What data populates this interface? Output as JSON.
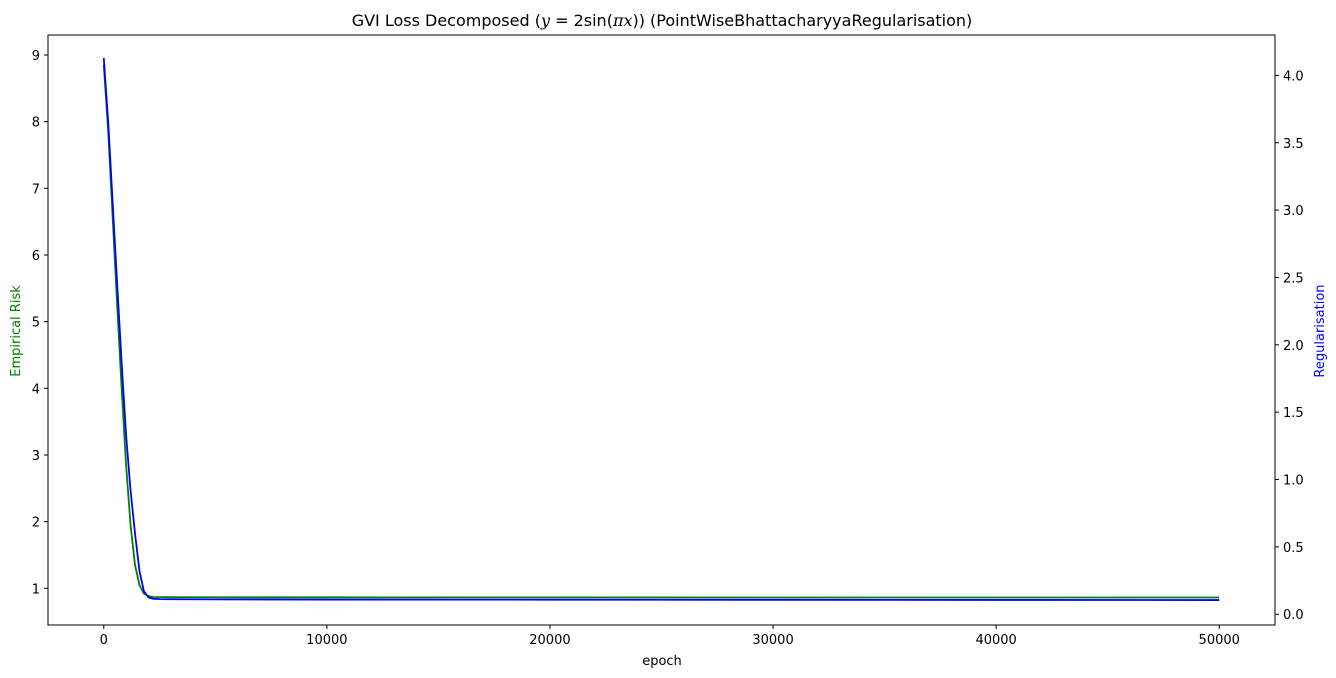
{
  "chart_data": {
    "type": "line",
    "title": "GVI Loss Decomposed (y = 2sin(πx)) (PointWiseBhattacharyyaRegularisation)",
    "title_parts": {
      "prefix": "GVI Loss Decomposed (",
      "math_y": "y",
      "math_eq": " = 2sin(",
      "math_pi": "π",
      "math_x": "x",
      "suffix": ")) (PointWiseBhattacharyyaRegularisation)"
    },
    "xlabel": "epoch",
    "ylabel_left": "Empirical Risk",
    "ylabel_right": "Regularisation",
    "ylabel_left_color": "#008000",
    "ylabel_right_color": "#0000ff",
    "xlim": [
      -2500,
      52500
    ],
    "ylim_left": [
      0.45,
      9.3
    ],
    "ylim_right": [
      -0.08,
      4.3
    ],
    "xticks": [
      0,
      10000,
      20000,
      30000,
      40000,
      50000
    ],
    "xtick_labels": [
      "0",
      "10000",
      "20000",
      "30000",
      "40000",
      "50000"
    ],
    "yticks_left": [
      1,
      2,
      3,
      4,
      5,
      6,
      7,
      8,
      9
    ],
    "ytick_labels_left": [
      "1",
      "2",
      "3",
      "4",
      "5",
      "6",
      "7",
      "8",
      "9"
    ],
    "yticks_right": [
      0.0,
      0.5,
      1.0,
      1.5,
      2.0,
      2.5,
      3.0,
      3.5,
      4.0
    ],
    "ytick_labels_right": [
      "0.0",
      "0.5",
      "1.0",
      "1.5",
      "2.0",
      "2.5",
      "3.0",
      "3.5",
      "4.0"
    ],
    "grid": false,
    "series": [
      {
        "axis": "left",
        "color": "#008000",
        "x": [
          0,
          200,
          400,
          600,
          800,
          1000,
          1200,
          1400,
          1600,
          1800,
          2000,
          2200,
          2500,
          3000,
          5000,
          10000,
          20000,
          30000,
          40000,
          50000
        ],
        "values": [
          8.85,
          7.85,
          6.55,
          5.25,
          4.0,
          2.85,
          1.95,
          1.35,
          1.05,
          0.92,
          0.885,
          0.87,
          0.868,
          0.867,
          0.866,
          0.865,
          0.864,
          0.863,
          0.862,
          0.862
        ]
      },
      {
        "axis": "right",
        "color": "#0000ff",
        "x": [
          0,
          200,
          400,
          600,
          800,
          1000,
          1200,
          1400,
          1600,
          1800,
          2000,
          2200,
          2500,
          3000,
          5000,
          10000,
          20000,
          30000,
          40000,
          50000
        ],
        "values": [
          4.13,
          3.65,
          3.05,
          2.45,
          1.87,
          1.33,
          0.92,
          0.6,
          0.32,
          0.17,
          0.125,
          0.115,
          0.112,
          0.111,
          0.11,
          0.109,
          0.108,
          0.107,
          0.106,
          0.105
        ]
      }
    ]
  }
}
